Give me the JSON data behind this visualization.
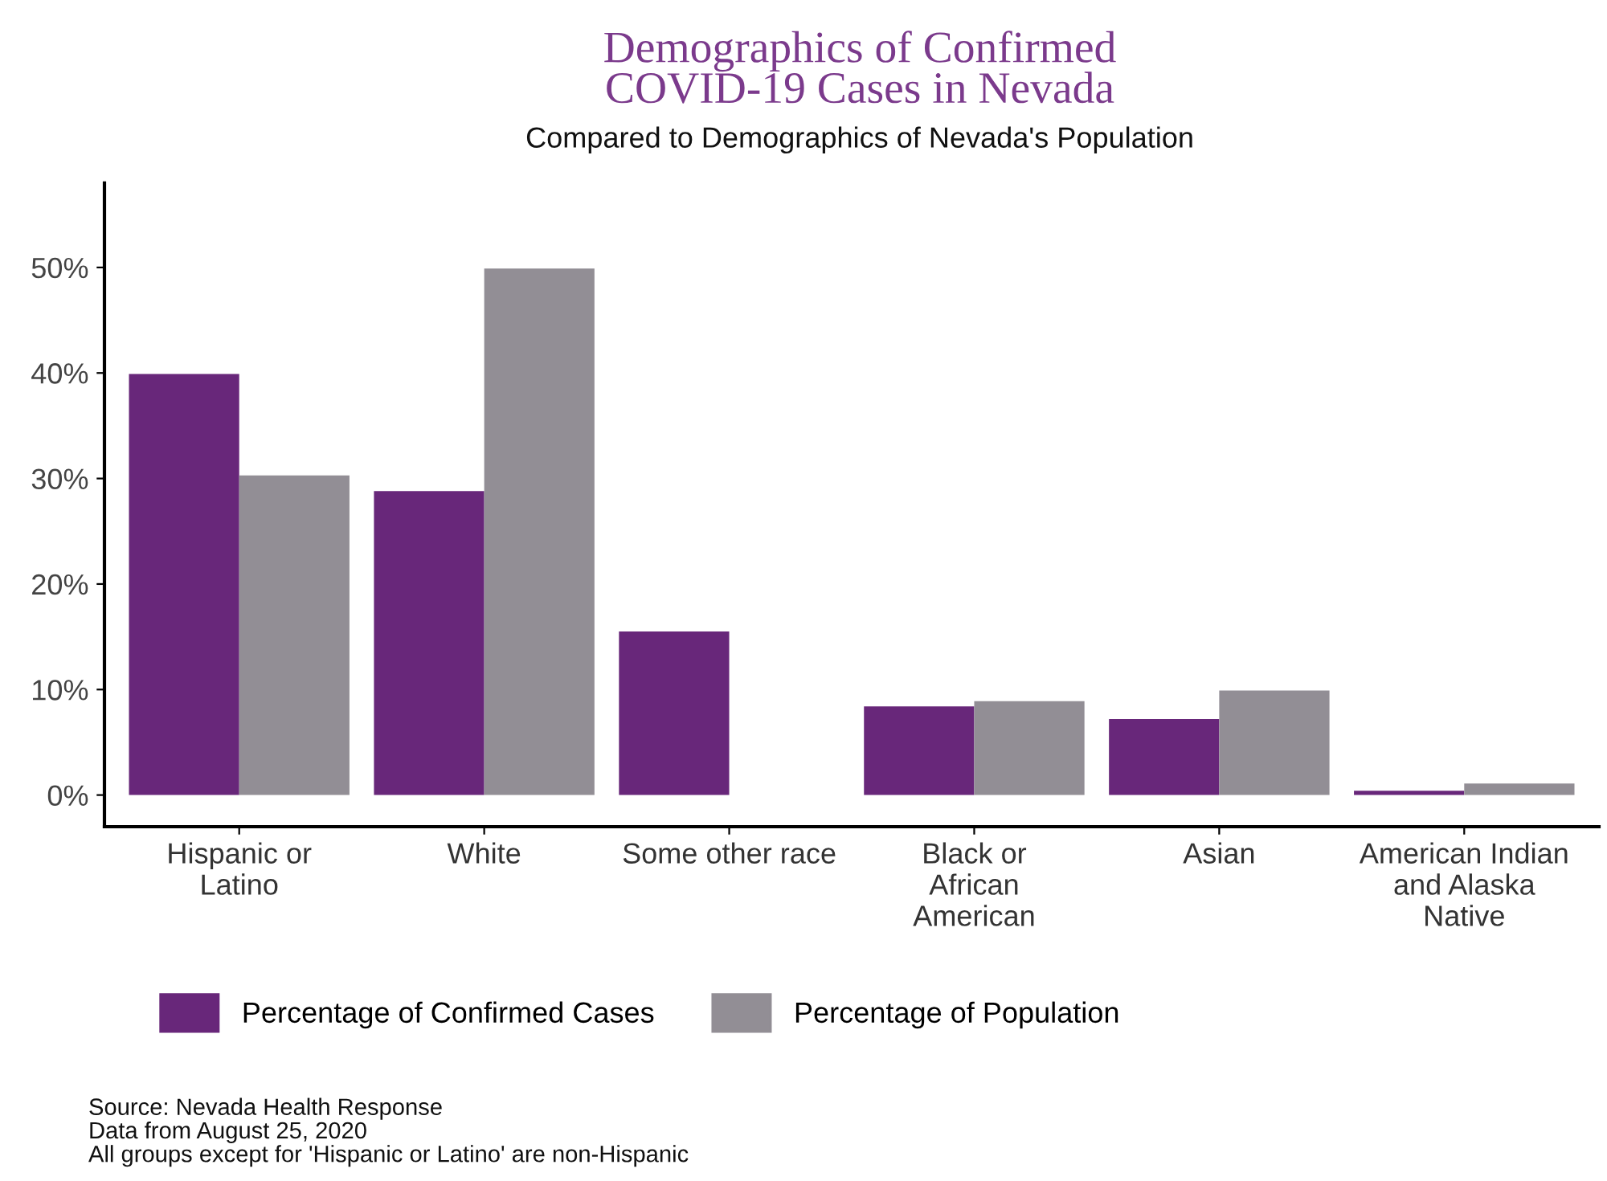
{
  "chart_data": {
    "type": "bar",
    "title": "Demographics of Confirmed\nCOVID-19 Cases in Nevada",
    "subtitle": "Compared to Demographics of Nevada's Population",
    "categories": [
      "Hispanic or\nLatino",
      "White",
      "Some other race",
      "Black or\nAfrican\nAmerican",
      "Asian",
      "American Indian\nand Alaska\nNative"
    ],
    "series": [
      {
        "name": "Percentage of Confirmed Cases",
        "color": "#68277a",
        "values": [
          39.9,
          28.8,
          15.5,
          8.4,
          7.2,
          0.4
        ]
      },
      {
        "name": "Percentage of Population",
        "color": "#928e95",
        "values": [
          30.3,
          49.9,
          null,
          8.9,
          9.9,
          1.1
        ]
      }
    ],
    "ylim": [
      -3,
      58
    ],
    "yticks": [
      {
        "value": 0,
        "label": "0%"
      },
      {
        "value": 10,
        "label": "10%"
      },
      {
        "value": 20,
        "label": "20%"
      },
      {
        "value": 30,
        "label": "30%"
      },
      {
        "value": 40,
        "label": "40%"
      },
      {
        "value": 50,
        "label": "50%"
      }
    ],
    "grid": false,
    "legend": "bottom",
    "annotations": [
      "Source: Nevada Health Response\nData from August 25, 2020\nAll groups except for 'Hispanic or Latino' are non-Hispanic"
    ]
  }
}
